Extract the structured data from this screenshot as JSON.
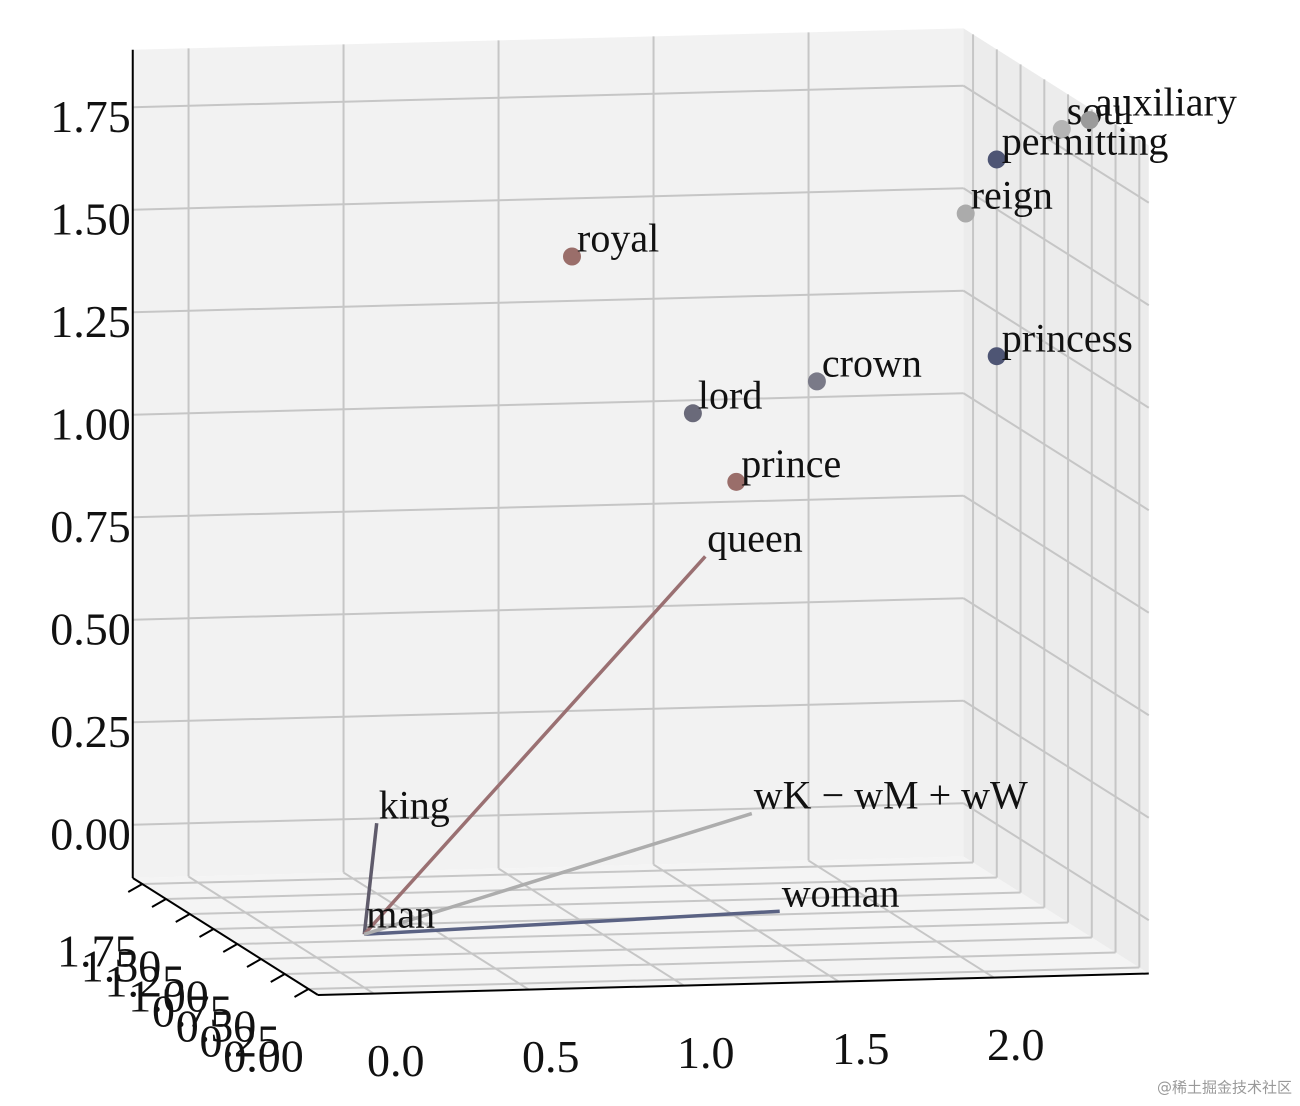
{
  "chart_data": {
    "type": "scatter3d",
    "xlim": [
      -0.18,
      2.5
    ],
    "ylim": [
      -0.1,
      1.85
    ],
    "zlim": [
      -0.13,
      1.89
    ],
    "xticks": [
      {
        "value": 0,
        "label": "0.0"
      },
      0.5,
      {
        "value": 1,
        "label": "1.0"
      },
      1.5,
      {
        "value": 2,
        "label": "2.0"
      }
    ],
    "yticks": [
      {
        "value": 0,
        "label": "0.00"
      },
      0.25,
      {
        "value": 0.5,
        "label": "0.50"
      },
      0.75,
      {
        "value": 1,
        "label": "1.00"
      },
      1.25,
      {
        "value": 1.5,
        "label": "1.50"
      },
      1.75
    ],
    "zticks": [
      {
        "value": 0,
        "label": "0.00"
      },
      0.25,
      {
        "value": 0.5,
        "label": "0.50"
      },
      0.75,
      {
        "value": 1,
        "label": "1.00"
      },
      1.25,
      {
        "value": 1.5,
        "label": "1.50"
      },
      1.75
    ],
    "grid": true,
    "vectors": [
      {
        "name": "king",
        "color": "#5f5b6b",
        "x": [
          0,
          0.04
        ],
        "y": [
          0,
          0
        ],
        "z": [
          0,
          0.27
        ]
      },
      {
        "name": "queen",
        "color": "#9a7072",
        "x": [
          0,
          1.1
        ],
        "y": [
          0,
          0
        ],
        "z": [
          0,
          0.9
        ]
      },
      {
        "name": "woman",
        "color": "#5a6283",
        "x": [
          0,
          1.34
        ],
        "y": [
          0,
          0
        ],
        "z": [
          0,
          0.03
        ]
      },
      {
        "name": "wK − wM + wW",
        "color": "#adadad",
        "x": [
          0,
          1.25
        ],
        "y": [
          0,
          0
        ],
        "z": [
          0,
          0.27
        ]
      }
    ],
    "origin_label": "man",
    "points": {
      "labels": [
        "royal",
        "lord",
        "crown",
        "prince",
        "princess",
        "reign",
        "permitting",
        "soul",
        "auxiliary"
      ],
      "x": [
        0.67,
        1.06,
        1.46,
        1.2,
        2.04,
        1.94,
        2.04,
        2.25,
        2.34
      ],
      "y": [
        0,
        0,
        0,
        0,
        0,
        0,
        0,
        0,
        0
      ],
      "z": [
        1.64,
        1.25,
        1.32,
        1.08,
        1.37,
        1.72,
        1.85,
        1.92,
        1.94
      ],
      "colors": [
        "#9a6e6a",
        "#6a6a7a",
        "#7a7a88",
        "#9a6e6a",
        "#4e5574",
        "#ababab",
        "#4e5574",
        "#b5b5b5",
        "#9a9a9a"
      ]
    },
    "watermark": "@稀土掘金技术社区"
  }
}
